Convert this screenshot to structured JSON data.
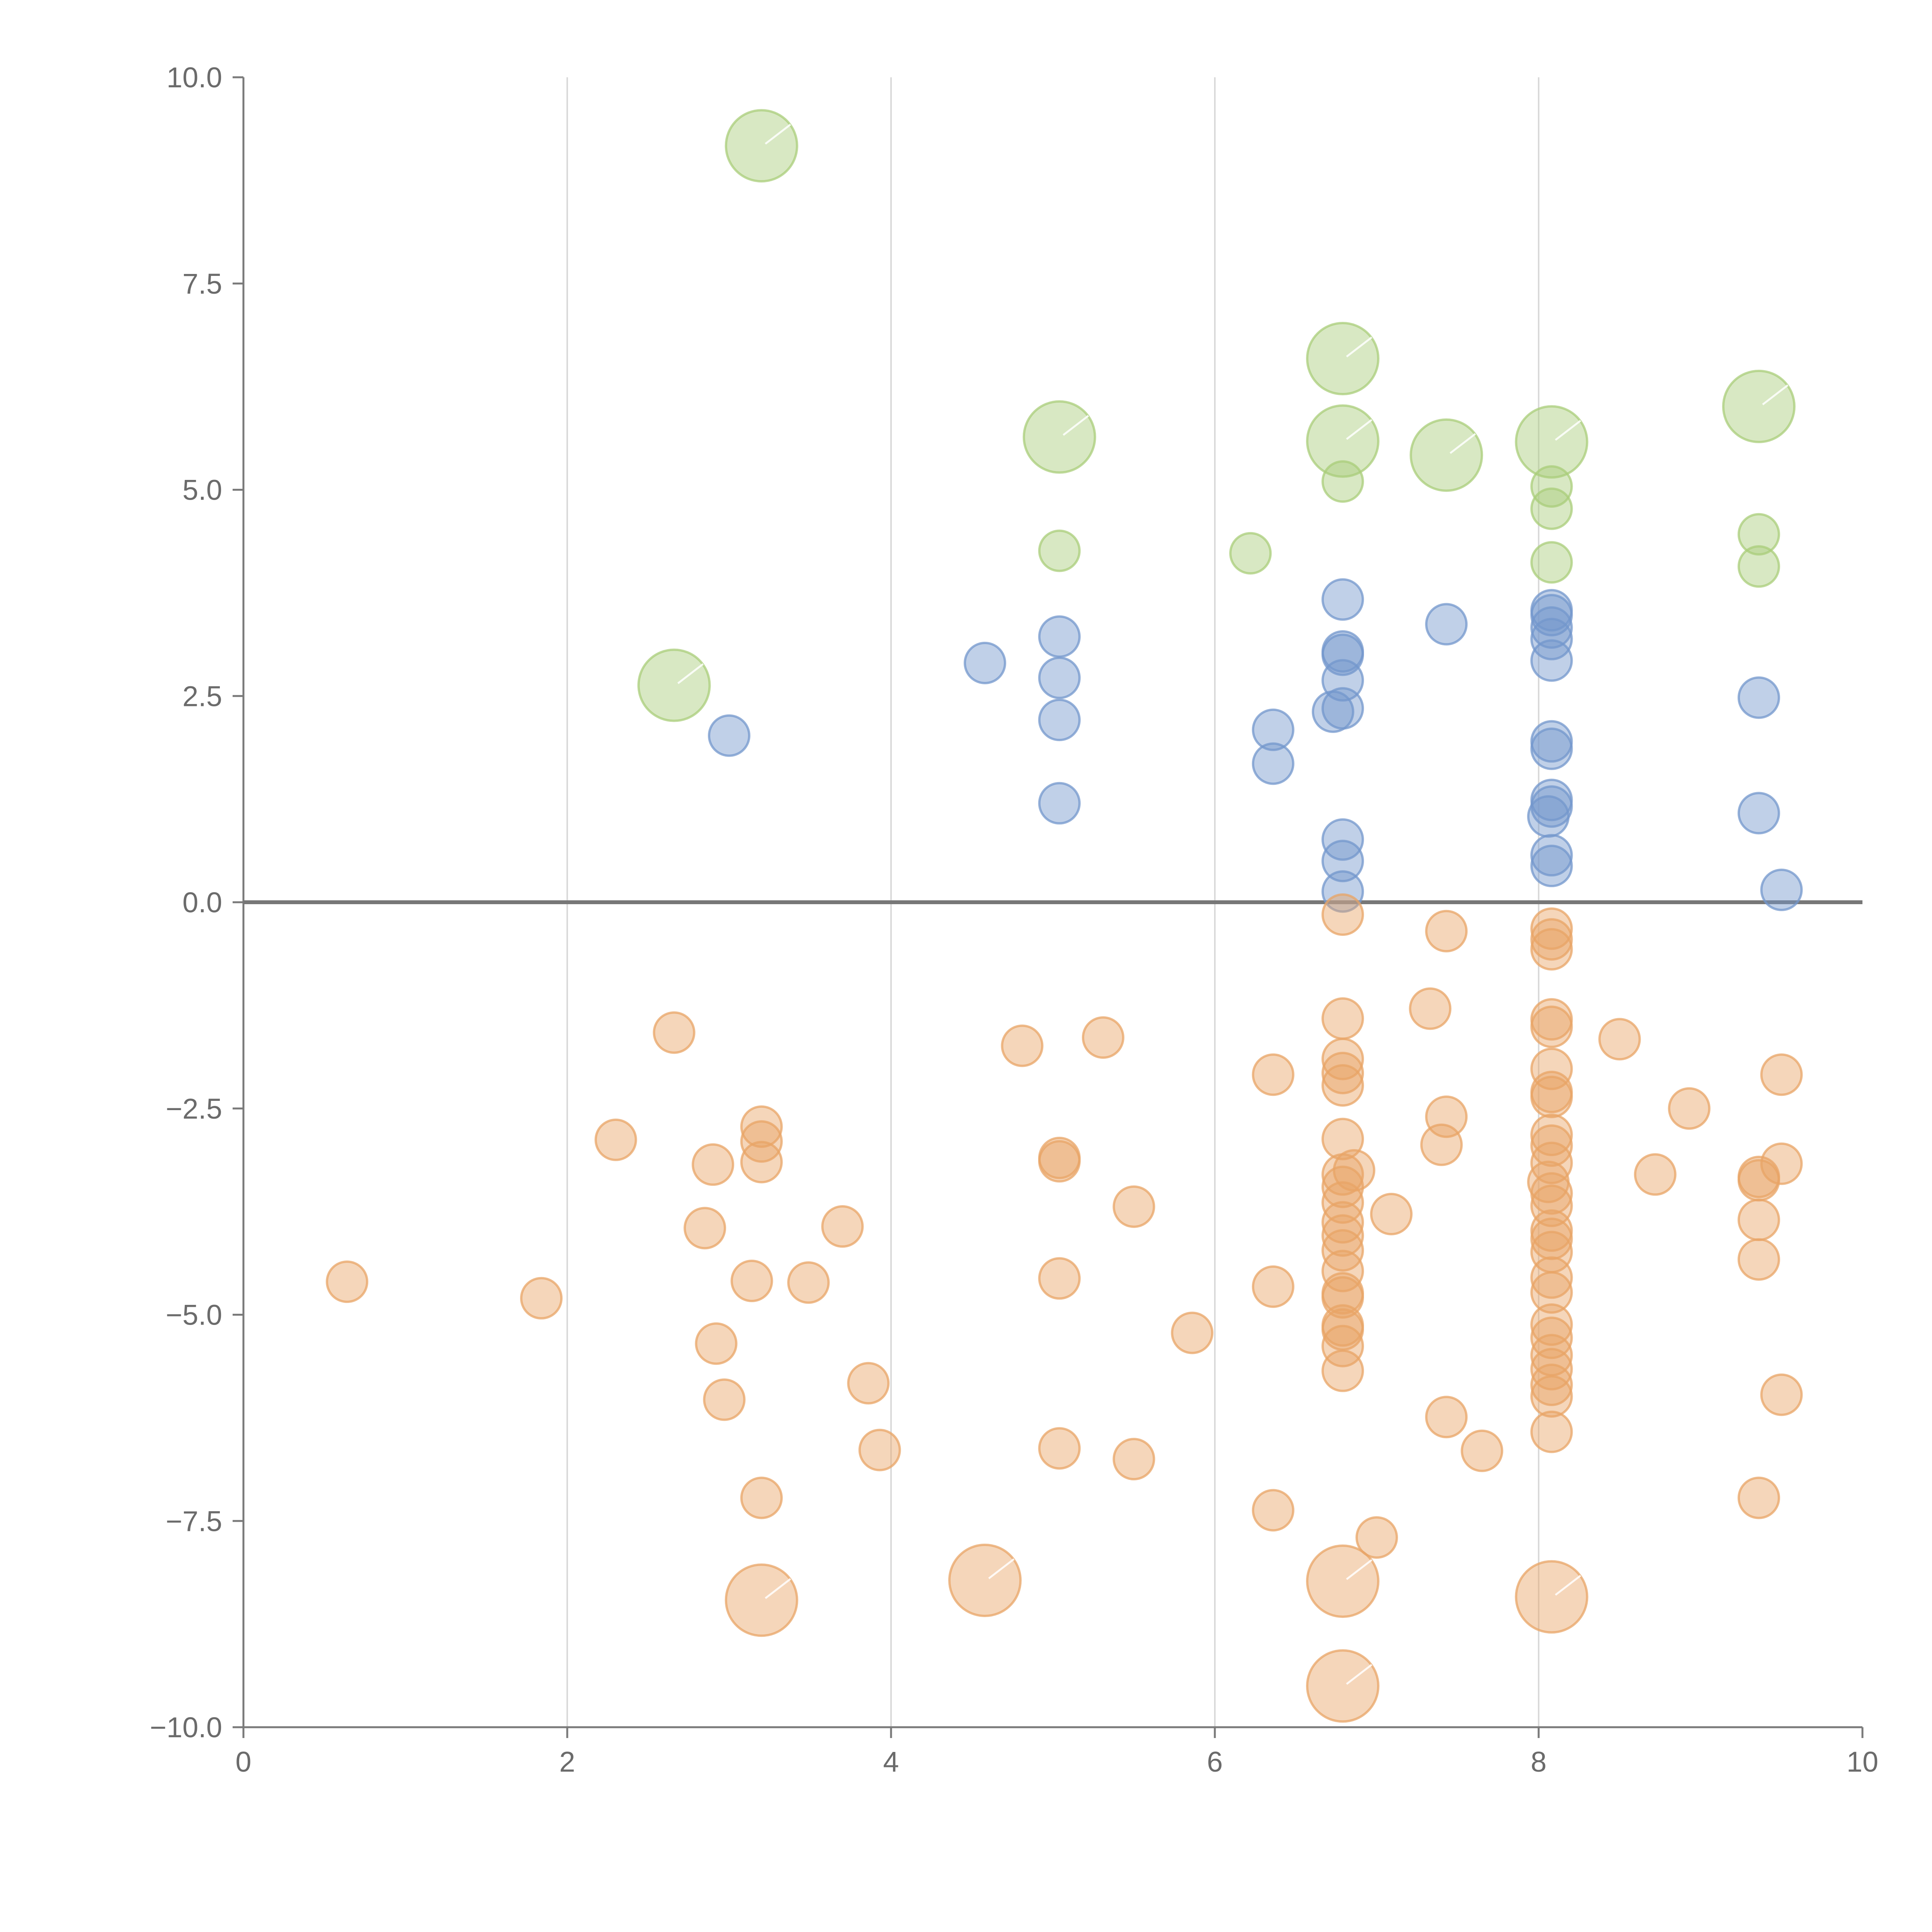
{
  "chart_data": {
    "type": "scatter",
    "title": "",
    "xlabel": "",
    "ylabel": "",
    "xlim": [
      0,
      10
    ],
    "ylim": [
      -10,
      10
    ],
    "grid": "vertical",
    "x_ticks": [
      {
        "value": 0,
        "label": "0"
      },
      {
        "value": 2,
        "label": "2"
      },
      {
        "value": 4,
        "label": "4"
      },
      {
        "value": 6,
        "label": "6"
      },
      {
        "value": 8,
        "label": "8"
      },
      {
        "value": 10,
        "label": "10"
      }
    ],
    "y_ticks": [
      {
        "value": 10,
        "label": "10.0"
      },
      {
        "value": 7.5,
        "label": "7.5"
      },
      {
        "value": 5,
        "label": "5.0"
      },
      {
        "value": 2.5,
        "label": "2.5"
      },
      {
        "value": 0,
        "label": "0.0"
      },
      {
        "value": -2.5,
        "label": "−2.5"
      },
      {
        "value": -5,
        "label": "−5.0"
      },
      {
        "value": -7.5,
        "label": "−7.5"
      },
      {
        "value": -10,
        "label": "−10.0"
      }
    ],
    "series": [
      {
        "name": "green",
        "color": "#a9cd7a",
        "points": [
          {
            "x": 3.2,
            "y": 9.17,
            "size": "large"
          },
          {
            "x": 2.66,
            "y": 2.63,
            "size": "large"
          },
          {
            "x": 5.04,
            "y": 5.64,
            "size": "large"
          },
          {
            "x": 6.79,
            "y": 6.59,
            "size": "large"
          },
          {
            "x": 6.79,
            "y": 5.59,
            "size": "large"
          },
          {
            "x": 7.43,
            "y": 5.42,
            "size": "large"
          },
          {
            "x": 8.08,
            "y": 5.58,
            "size": "large"
          },
          {
            "x": 9.36,
            "y": 6.01,
            "size": "large"
          },
          {
            "x": 6.79,
            "y": 5.1,
            "size": "small"
          },
          {
            "x": 5.04,
            "y": 4.26,
            "size": "small"
          },
          {
            "x": 6.22,
            "y": 4.23,
            "size": "small"
          },
          {
            "x": 8.08,
            "y": 5.04,
            "size": "small"
          },
          {
            "x": 8.08,
            "y": 4.77,
            "size": "small"
          },
          {
            "x": 8.08,
            "y": 4.12,
            "size": "small"
          },
          {
            "x": 9.36,
            "y": 4.46,
            "size": "small"
          },
          {
            "x": 9.36,
            "y": 4.07,
            "size": "small"
          }
        ]
      },
      {
        "name": "blue",
        "color": "#7397cc",
        "points": [
          {
            "x": 3.0,
            "y": 2.02,
            "size": "small"
          },
          {
            "x": 4.58,
            "y": 2.9,
            "size": "small"
          },
          {
            "x": 5.04,
            "y": 3.22,
            "size": "small"
          },
          {
            "x": 5.04,
            "y": 2.72,
            "size": "small"
          },
          {
            "x": 5.04,
            "y": 2.21,
            "size": "small"
          },
          {
            "x": 5.04,
            "y": 1.2,
            "size": "small"
          },
          {
            "x": 6.36,
            "y": 2.09,
            "size": "small"
          },
          {
            "x": 6.36,
            "y": 1.68,
            "size": "small"
          },
          {
            "x": 6.79,
            "y": 3.67,
            "size": "small"
          },
          {
            "x": 6.79,
            "y": 3.04,
            "size": "small"
          },
          {
            "x": 6.79,
            "y": 3.0,
            "size": "small"
          },
          {
            "x": 6.79,
            "y": 2.69,
            "size": "small"
          },
          {
            "x": 6.79,
            "y": 2.35,
            "size": "small"
          },
          {
            "x": 6.73,
            "y": 2.31,
            "size": "small"
          },
          {
            "x": 6.79,
            "y": 0.76,
            "size": "small"
          },
          {
            "x": 6.79,
            "y": 0.5,
            "size": "small"
          },
          {
            "x": 6.79,
            "y": 0.13,
            "size": "small"
          },
          {
            "x": 7.43,
            "y": 3.37,
            "size": "small"
          },
          {
            "x": 8.08,
            "y": 3.54,
            "size": "small"
          },
          {
            "x": 8.08,
            "y": 3.48,
            "size": "small"
          },
          {
            "x": 8.08,
            "y": 3.33,
            "size": "small"
          },
          {
            "x": 8.08,
            "y": 3.19,
            "size": "small"
          },
          {
            "x": 8.08,
            "y": 2.93,
            "size": "small"
          },
          {
            "x": 8.08,
            "y": 1.95,
            "size": "small"
          },
          {
            "x": 8.08,
            "y": 1.86,
            "size": "small"
          },
          {
            "x": 8.08,
            "y": 1.24,
            "size": "small"
          },
          {
            "x": 8.08,
            "y": 1.16,
            "size": "small"
          },
          {
            "x": 8.06,
            "y": 1.04,
            "size": "small"
          },
          {
            "x": 8.08,
            "y": 0.57,
            "size": "small"
          },
          {
            "x": 8.08,
            "y": 0.44,
            "size": "small"
          },
          {
            "x": 9.36,
            "y": 2.48,
            "size": "small"
          },
          {
            "x": 9.36,
            "y": 1.08,
            "size": "small"
          },
          {
            "x": 9.5,
            "y": 0.15,
            "size": "small"
          }
        ]
      },
      {
        "name": "orange",
        "color": "#e8a466",
        "points": [
          {
            "x": 0.64,
            "y": -4.6,
            "size": "small"
          },
          {
            "x": 1.84,
            "y": -4.8,
            "size": "small"
          },
          {
            "x": 2.3,
            "y": -2.88,
            "size": "small"
          },
          {
            "x": 2.66,
            "y": -1.58,
            "size": "small"
          },
          {
            "x": 2.85,
            "y": -3.95,
            "size": "small"
          },
          {
            "x": 2.9,
            "y": -3.18,
            "size": "small"
          },
          {
            "x": 2.92,
            "y": -5.35,
            "size": "small"
          },
          {
            "x": 2.97,
            "y": -6.03,
            "size": "small"
          },
          {
            "x": 3.14,
            "y": -4.59,
            "size": "small"
          },
          {
            "x": 3.2,
            "y": -2.72,
            "size": "small"
          },
          {
            "x": 3.2,
            "y": -2.9,
            "size": "small"
          },
          {
            "x": 3.2,
            "y": -3.15,
            "size": "small"
          },
          {
            "x": 3.2,
            "y": -7.22,
            "size": "small"
          },
          {
            "x": 3.2,
            "y": -8.46,
            "size": "large"
          },
          {
            "x": 3.49,
            "y": -4.61,
            "size": "small"
          },
          {
            "x": 3.7,
            "y": -3.93,
            "size": "small"
          },
          {
            "x": 3.86,
            "y": -5.83,
            "size": "small"
          },
          {
            "x": 3.93,
            "y": -6.64,
            "size": "small"
          },
          {
            "x": 4.58,
            "y": -8.22,
            "size": "large"
          },
          {
            "x": 4.81,
            "y": -1.74,
            "size": "small"
          },
          {
            "x": 5.04,
            "y": -3.1,
            "size": "small"
          },
          {
            "x": 5.04,
            "y": -3.14,
            "size": "small"
          },
          {
            "x": 5.04,
            "y": -4.56,
            "size": "small"
          },
          {
            "x": 5.04,
            "y": -6.62,
            "size": "small"
          },
          {
            "x": 5.31,
            "y": -1.64,
            "size": "small"
          },
          {
            "x": 5.5,
            "y": -3.69,
            "size": "small"
          },
          {
            "x": 5.5,
            "y": -6.75,
            "size": "small"
          },
          {
            "x": 5.86,
            "y": -5.22,
            "size": "small"
          },
          {
            "x": 6.36,
            "y": -2.09,
            "size": "small"
          },
          {
            "x": 6.36,
            "y": -4.66,
            "size": "small"
          },
          {
            "x": 6.36,
            "y": -7.37,
            "size": "small"
          },
          {
            "x": 6.79,
            "y": -0.15,
            "size": "small"
          },
          {
            "x": 6.79,
            "y": -1.41,
            "size": "small"
          },
          {
            "x": 6.79,
            "y": -1.9,
            "size": "small"
          },
          {
            "x": 6.79,
            "y": -2.07,
            "size": "small"
          },
          {
            "x": 6.79,
            "y": -2.22,
            "size": "small"
          },
          {
            "x": 6.79,
            "y": -2.87,
            "size": "small"
          },
          {
            "x": 6.79,
            "y": -3.3,
            "size": "small"
          },
          {
            "x": 6.79,
            "y": -3.45,
            "size": "small"
          },
          {
            "x": 6.79,
            "y": -3.64,
            "size": "small"
          },
          {
            "x": 6.79,
            "y": -3.88,
            "size": "small"
          },
          {
            "x": 6.79,
            "y": -4.04,
            "size": "small"
          },
          {
            "x": 6.79,
            "y": -4.22,
            "size": "small"
          },
          {
            "x": 6.79,
            "y": -4.47,
            "size": "small"
          },
          {
            "x": 6.79,
            "y": -4.74,
            "size": "small"
          },
          {
            "x": 6.79,
            "y": -4.79,
            "size": "small"
          },
          {
            "x": 6.79,
            "y": -5.13,
            "size": "small"
          },
          {
            "x": 6.79,
            "y": -5.18,
            "size": "small"
          },
          {
            "x": 6.79,
            "y": -5.38,
            "size": "small"
          },
          {
            "x": 6.79,
            "y": -5.68,
            "size": "small"
          },
          {
            "x": 6.86,
            "y": -3.25,
            "size": "small"
          },
          {
            "x": 6.79,
            "y": -8.23,
            "size": "large"
          },
          {
            "x": 6.79,
            "y": -9.5,
            "size": "large"
          },
          {
            "x": 7.0,
            "y": -7.7,
            "size": "small"
          },
          {
            "x": 7.09,
            "y": -3.78,
            "size": "small"
          },
          {
            "x": 7.33,
            "y": -1.29,
            "size": "small"
          },
          {
            "x": 7.4,
            "y": -2.94,
            "size": "small"
          },
          {
            "x": 7.43,
            "y": -0.35,
            "size": "small"
          },
          {
            "x": 7.43,
            "y": -2.6,
            "size": "small"
          },
          {
            "x": 7.43,
            "y": -6.24,
            "size": "small"
          },
          {
            "x": 7.65,
            "y": -6.65,
            "size": "small"
          },
          {
            "x": 8.08,
            "y": -0.32,
            "size": "small"
          },
          {
            "x": 8.08,
            "y": -0.45,
            "size": "small"
          },
          {
            "x": 8.08,
            "y": -0.57,
            "size": "small"
          },
          {
            "x": 8.08,
            "y": -1.42,
            "size": "small"
          },
          {
            "x": 8.08,
            "y": -1.51,
            "size": "small"
          },
          {
            "x": 8.08,
            "y": -2.02,
            "size": "small"
          },
          {
            "x": 8.08,
            "y": -2.3,
            "size": "small"
          },
          {
            "x": 8.08,
            "y": -2.36,
            "size": "small"
          },
          {
            "x": 8.08,
            "y": -2.82,
            "size": "small"
          },
          {
            "x": 8.08,
            "y": -2.95,
            "size": "small"
          },
          {
            "x": 8.08,
            "y": -3.16,
            "size": "small"
          },
          {
            "x": 8.06,
            "y": -3.39,
            "size": "small"
          },
          {
            "x": 8.08,
            "y": -3.53,
            "size": "small"
          },
          {
            "x": 8.08,
            "y": -3.68,
            "size": "small"
          },
          {
            "x": 8.08,
            "y": -3.98,
            "size": "small"
          },
          {
            "x": 8.08,
            "y": -4.08,
            "size": "small"
          },
          {
            "x": 8.08,
            "y": -4.24,
            "size": "small"
          },
          {
            "x": 8.08,
            "y": -4.55,
            "size": "small"
          },
          {
            "x": 8.08,
            "y": -4.73,
            "size": "small"
          },
          {
            "x": 8.08,
            "y": -5.12,
            "size": "small"
          },
          {
            "x": 8.08,
            "y": -5.28,
            "size": "small"
          },
          {
            "x": 8.08,
            "y": -5.49,
            "size": "small"
          },
          {
            "x": 8.08,
            "y": -5.66,
            "size": "small"
          },
          {
            "x": 8.08,
            "y": -5.85,
            "size": "small"
          },
          {
            "x": 8.08,
            "y": -5.99,
            "size": "small"
          },
          {
            "x": 8.08,
            "y": -6.42,
            "size": "small"
          },
          {
            "x": 8.08,
            "y": -8.42,
            "size": "large"
          },
          {
            "x": 8.5,
            "y": -1.66,
            "size": "small"
          },
          {
            "x": 8.72,
            "y": -3.3,
            "size": "small"
          },
          {
            "x": 8.93,
            "y": -2.5,
            "size": "small"
          },
          {
            "x": 9.36,
            "y": -3.33,
            "size": "small"
          },
          {
            "x": 9.36,
            "y": -3.37,
            "size": "small"
          },
          {
            "x": 9.36,
            "y": -3.85,
            "size": "small"
          },
          {
            "x": 9.36,
            "y": -4.33,
            "size": "small"
          },
          {
            "x": 9.36,
            "y": -7.22,
            "size": "small"
          },
          {
            "x": 9.5,
            "y": -2.09,
            "size": "small"
          },
          {
            "x": 9.5,
            "y": -3.17,
            "size": "small"
          },
          {
            "x": 9.5,
            "y": -5.97,
            "size": "small"
          }
        ]
      }
    ]
  }
}
